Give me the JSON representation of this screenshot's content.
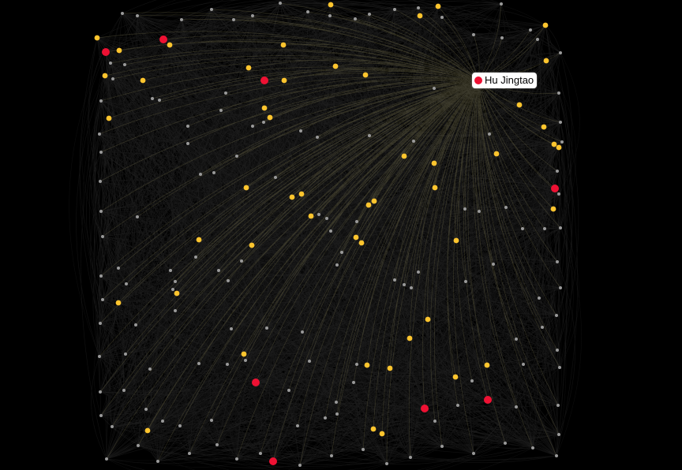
{
  "graph": {
    "colors": {
      "background": "#000000",
      "edge": "#bbbbbb",
      "highlight": "#f0e68c",
      "node_red": "#ee1133",
      "node_yellow": "#ffc52e",
      "node_gray": "#9a9a9a"
    }
  },
  "tooltip": {
    "label": "Hu Jingtao",
    "color": "#ee1133"
  }
}
